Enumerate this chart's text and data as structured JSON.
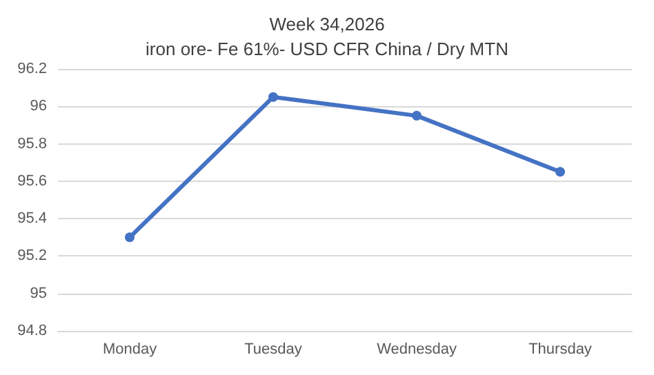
{
  "chart_data": {
    "type": "line",
    "title": "Week 34,2026",
    "subtitle": "iron ore- Fe 61%- USD CFR China / Dry MTN",
    "categories": [
      "Monday",
      "Tuesday",
      "Wednesday",
      "Thursday"
    ],
    "series": [
      {
        "color": "#4472c4",
        "values": [
          95.3,
          96.05,
          95.95,
          95.65
        ]
      }
    ],
    "ylim": [
      94.8,
      96.2
    ],
    "yticks": [
      94.8,
      95,
      95.2,
      95.4,
      95.6,
      95.8,
      96,
      96.2
    ],
    "grid": "y",
    "marker": "circle",
    "line_style": "solid"
  }
}
